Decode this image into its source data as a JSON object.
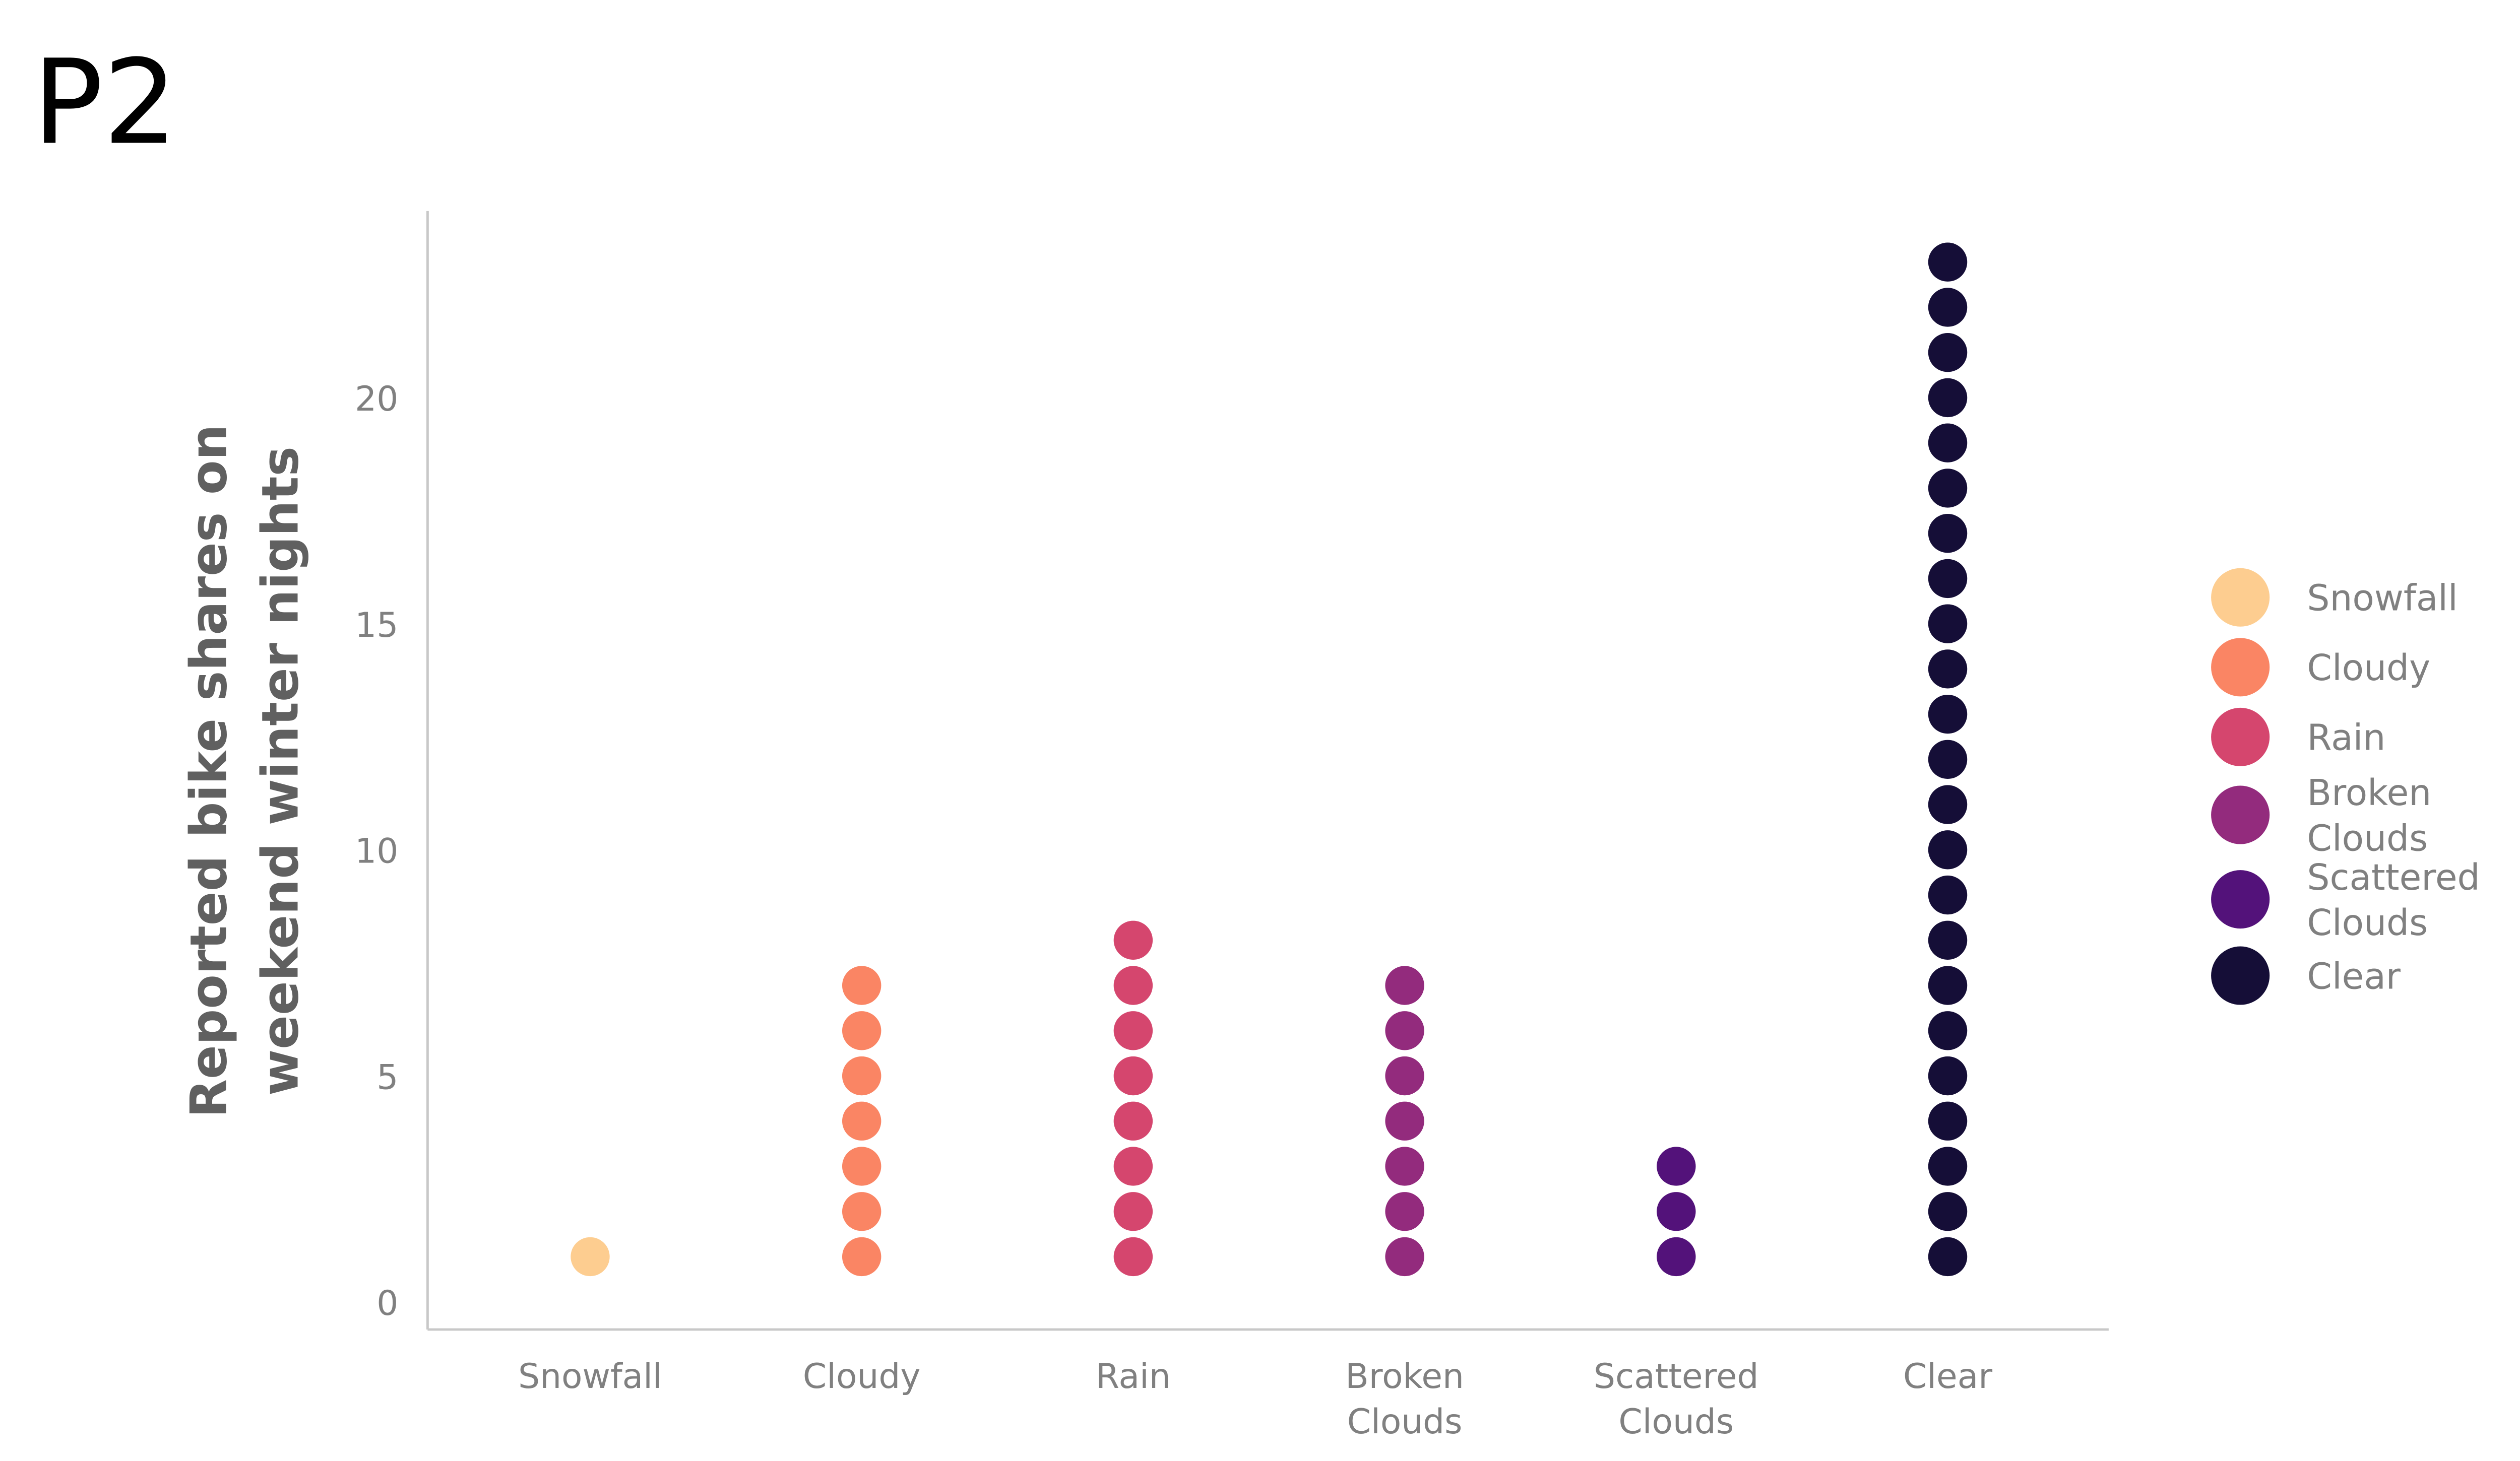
{
  "panel_tag": "P2",
  "chart_data": {
    "type": "scatter",
    "subtype": "dot-stack",
    "title": "",
    "xlabel": "",
    "ylabel": "Reported bike shares on weekend winter nights",
    "ylabel_lines": [
      "Reported bike shares on",
      "weekend winter nights"
    ],
    "categories": [
      "Snowfall",
      "Cloudy",
      "Rain",
      "Broken Clouds",
      "Scattered Clouds",
      "Clear"
    ],
    "category_label_lines": [
      [
        "Snowfall"
      ],
      [
        "Cloudy"
      ],
      [
        "Rain"
      ],
      [
        "Broken",
        "Clouds"
      ],
      [
        "Scattered",
        "Clouds"
      ],
      [
        "Clear"
      ]
    ],
    "values": [
      1,
      7,
      8,
      7,
      3,
      23
    ],
    "colors": [
      "#FDCD90",
      "#FA8564",
      "#D5466E",
      "#932B7D",
      "#53127A",
      "#150E37"
    ],
    "ylim": [
      0,
      24
    ],
    "yticks": [
      "0",
      "5",
      "10",
      "15",
      "20"
    ],
    "grid": false,
    "legend": {
      "placement": "right",
      "entries": [
        [
          "Snowfall"
        ],
        [
          "Cloudy"
        ],
        [
          "Rain"
        ],
        [
          "Broken",
          "Clouds"
        ],
        [
          "Scattered",
          "Clouds"
        ],
        [
          "Clear"
        ]
      ]
    }
  }
}
